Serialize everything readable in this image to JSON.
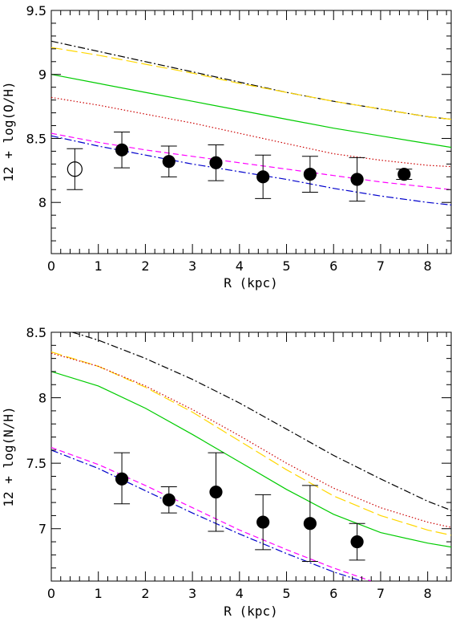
{
  "chart_data": [
    {
      "type": "scatter",
      "xlabel": "R (kpc)",
      "ylabel": "12 + log(O/H)",
      "xlim": [
        0,
        8.5
      ],
      "ylim": [
        7.6,
        9.5
      ],
      "xticks": [
        "0",
        "1",
        "2",
        "3",
        "4",
        "5",
        "6",
        "7",
        "8"
      ],
      "yticks": [
        "8",
        "8.5",
        "9",
        "9.5"
      ],
      "yticks_values": [
        8,
        8.5,
        9,
        9.5
      ],
      "points": [
        {
          "x": 0.5,
          "y": 8.26,
          "err_lo": 8.1,
          "err_hi": 8.42,
          "filled": false
        },
        {
          "x": 1.5,
          "y": 8.41,
          "err_lo": 8.27,
          "err_hi": 8.55,
          "filled": true
        },
        {
          "x": 2.5,
          "y": 8.32,
          "err_lo": 8.2,
          "err_hi": 8.44,
          "filled": true
        },
        {
          "x": 3.5,
          "y": 8.31,
          "err_lo": 8.17,
          "err_hi": 8.45,
          "filled": true
        },
        {
          "x": 4.5,
          "y": 8.2,
          "err_lo": 8.03,
          "err_hi": 8.37,
          "filled": true
        },
        {
          "x": 5.5,
          "y": 8.22,
          "err_lo": 8.08,
          "err_hi": 8.36,
          "filled": true
        },
        {
          "x": 6.5,
          "y": 8.18,
          "err_lo": 8.01,
          "err_hi": 8.35,
          "filled": true
        },
        {
          "x": 7.5,
          "y": 8.22,
          "err_lo": 8.18,
          "err_hi": 8.26,
          "filled": true
        }
      ],
      "curves": [
        {
          "color": "#000000",
          "style": "dashdot",
          "x": [
            0,
            1,
            2,
            3,
            4,
            5,
            6,
            7,
            8,
            8.5
          ],
          "y": [
            9.26,
            9.18,
            9.1,
            9.02,
            8.94,
            8.86,
            8.79,
            8.73,
            8.67,
            8.65
          ]
        },
        {
          "color": "#ffd700",
          "style": "longdash",
          "x": [
            0,
            1,
            2,
            3,
            4,
            5,
            6,
            7,
            8,
            8.5
          ],
          "y": [
            9.21,
            9.15,
            9.08,
            9.01,
            8.93,
            8.86,
            8.79,
            8.73,
            8.67,
            8.65
          ]
        },
        {
          "color": "#00cc00",
          "style": "solid",
          "x": [
            0,
            1,
            2,
            3,
            4,
            5,
            6,
            7,
            8,
            8.5
          ],
          "y": [
            9.0,
            8.93,
            8.86,
            8.79,
            8.72,
            8.65,
            8.58,
            8.52,
            8.46,
            8.43
          ]
        },
        {
          "color": "#cc0000",
          "style": "dotted",
          "x": [
            0,
            1,
            2,
            3,
            4,
            5,
            6,
            7,
            8,
            8.5
          ],
          "y": [
            8.82,
            8.76,
            8.69,
            8.62,
            8.54,
            8.46,
            8.38,
            8.33,
            8.29,
            8.28
          ]
        },
        {
          "color": "#ff00ff",
          "style": "dashed",
          "x": [
            0,
            1,
            2,
            3,
            4,
            5,
            6,
            7,
            8,
            8.5
          ],
          "y": [
            8.54,
            8.47,
            8.41,
            8.36,
            8.31,
            8.26,
            8.21,
            8.16,
            8.12,
            8.1
          ]
        },
        {
          "color": "#0000cc",
          "style": "dashdot",
          "x": [
            0,
            1,
            2,
            3,
            4,
            5,
            6,
            7,
            8,
            8.5
          ],
          "y": [
            8.52,
            8.44,
            8.37,
            8.3,
            8.24,
            8.18,
            8.11,
            8.05,
            8.0,
            7.98
          ]
        }
      ]
    },
    {
      "type": "scatter",
      "xlabel": "R (kpc)",
      "ylabel": "12 + log(N/H)",
      "xlim": [
        0,
        8.5
      ],
      "ylim": [
        6.6,
        8.5
      ],
      "xticks": [
        "0",
        "1",
        "2",
        "3",
        "4",
        "5",
        "6",
        "7",
        "8"
      ],
      "yticks": [
        "7",
        "7.5",
        "8",
        "8.5"
      ],
      "yticks_values": [
        7,
        7.5,
        8,
        8.5
      ],
      "points": [
        {
          "x": 1.5,
          "y": 7.38,
          "err_lo": 7.19,
          "err_hi": 7.58,
          "filled": true
        },
        {
          "x": 2.5,
          "y": 7.22,
          "err_lo": 7.12,
          "err_hi": 7.32,
          "filled": true
        },
        {
          "x": 3.5,
          "y": 7.28,
          "err_lo": 6.98,
          "err_hi": 7.58,
          "filled": true
        },
        {
          "x": 4.5,
          "y": 7.05,
          "err_lo": 6.84,
          "err_hi": 7.26,
          "filled": true
        },
        {
          "x": 5.5,
          "y": 7.04,
          "err_lo": 6.75,
          "err_hi": 7.33,
          "filled": true
        },
        {
          "x": 6.5,
          "y": 6.9,
          "err_lo": 6.76,
          "err_hi": 7.04,
          "filled": true
        }
      ],
      "curves": [
        {
          "color": "#000000",
          "style": "dashdot",
          "x": [
            0.45,
            1,
            2,
            3,
            4,
            5,
            6,
            7,
            8,
            8.5
          ],
          "y": [
            8.5,
            8.44,
            8.3,
            8.14,
            7.96,
            7.76,
            7.56,
            7.38,
            7.21,
            7.14
          ]
        },
        {
          "color": "#ffd700",
          "style": "longdash",
          "x": [
            0,
            1,
            2,
            3,
            4,
            5,
            6,
            7,
            8,
            8.5
          ],
          "y": [
            8.35,
            8.24,
            8.08,
            7.89,
            7.67,
            7.45,
            7.25,
            7.1,
            6.99,
            6.95
          ]
        },
        {
          "color": "#cc0000",
          "style": "dotted",
          "x": [
            0,
            1,
            2,
            3,
            4,
            5,
            6,
            7,
            8,
            8.5
          ],
          "y": [
            8.34,
            8.24,
            8.09,
            7.91,
            7.71,
            7.5,
            7.31,
            7.16,
            7.05,
            7.01
          ]
        },
        {
          "color": "#00cc00",
          "style": "solid",
          "x": [
            0,
            1,
            2,
            3,
            4,
            5,
            6,
            7,
            8,
            8.5
          ],
          "y": [
            8.2,
            8.09,
            7.92,
            7.72,
            7.51,
            7.3,
            7.11,
            6.97,
            6.89,
            6.86
          ]
        },
        {
          "color": "#ff00ff",
          "style": "dashed",
          "x": [
            0,
            1,
            2,
            3,
            4,
            5,
            6,
            6.8
          ],
          "y": [
            7.62,
            7.49,
            7.33,
            7.16,
            6.99,
            6.84,
            6.7,
            6.6
          ]
        },
        {
          "color": "#0000cc",
          "style": "dashdot",
          "x": [
            0,
            1,
            2,
            3,
            4,
            5,
            6,
            6.6
          ],
          "y": [
            7.6,
            7.46,
            7.29,
            7.12,
            6.96,
            6.81,
            6.67,
            6.6
          ]
        }
      ]
    }
  ]
}
